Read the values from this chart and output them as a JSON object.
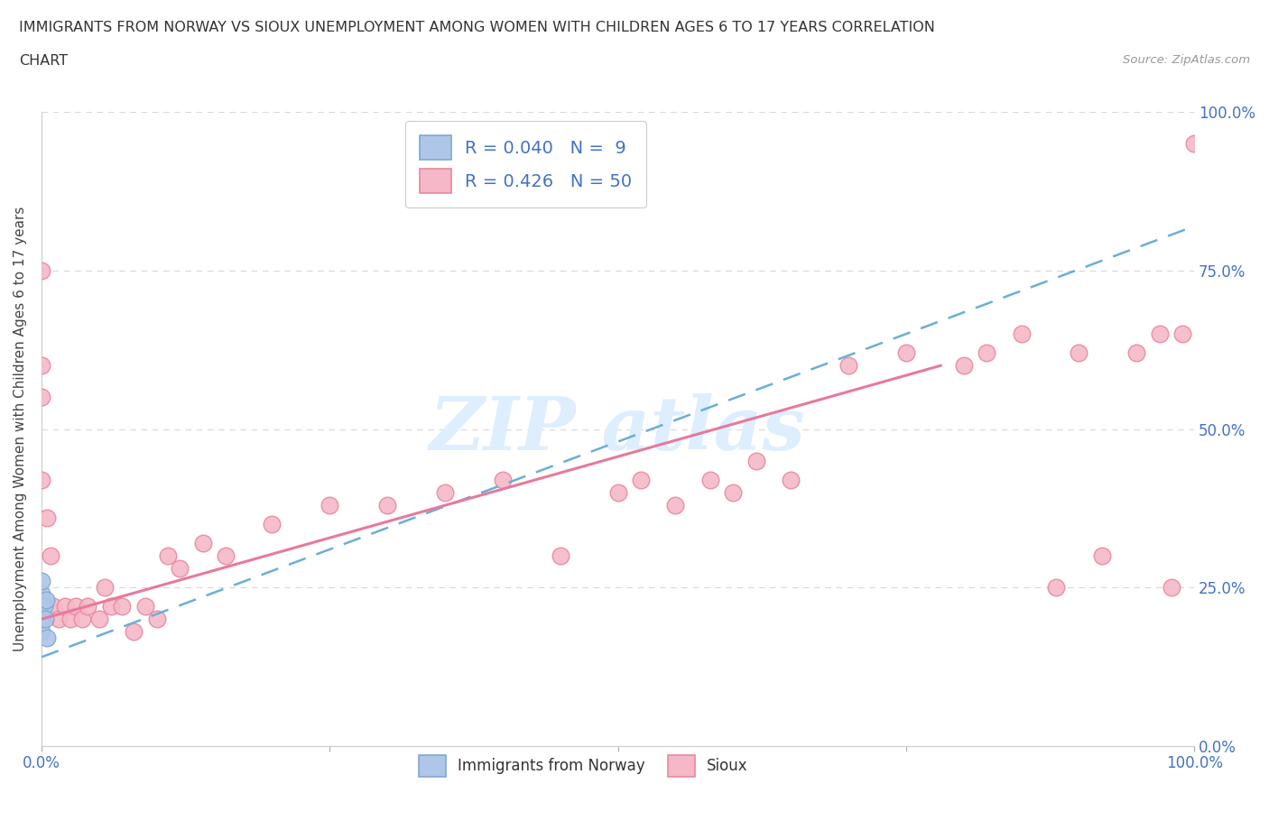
{
  "title_line1": "IMMIGRANTS FROM NORWAY VS SIOUX UNEMPLOYMENT AMONG WOMEN WITH CHILDREN AGES 6 TO 17 YEARS CORRELATION",
  "title_line2": "CHART",
  "source": "Source: ZipAtlas.com",
  "ylabel": "Unemployment Among Women with Children Ages 6 to 17 years",
  "xlim": [
    0.0,
    1.0
  ],
  "ylim": [
    0.0,
    1.0
  ],
  "xtick_labels": [
    "0.0%",
    "",
    "",
    "",
    "100.0%"
  ],
  "xtick_values": [
    0.0,
    0.25,
    0.5,
    0.75,
    1.0
  ],
  "right_ytick_labels": [
    "0.0%",
    "25.0%",
    "50.0%",
    "75.0%",
    "100.0%"
  ],
  "ytick_values": [
    0.0,
    0.25,
    0.5,
    0.75,
    1.0
  ],
  "norway_color": "#aec6e8",
  "sioux_color": "#f4b8c8",
  "norway_edge_color": "#7fa8d0",
  "sioux_edge_color": "#e8889a",
  "norway_R": 0.04,
  "norway_N": 9,
  "sioux_R": 0.426,
  "sioux_N": 50,
  "norway_x": [
    0.0,
    0.0,
    0.0,
    0.0,
    0.0,
    0.002,
    0.003,
    0.004,
    0.005
  ],
  "norway_y": [
    0.18,
    0.2,
    0.22,
    0.24,
    0.26,
    0.22,
    0.2,
    0.23,
    0.17
  ],
  "sioux_x": [
    0.0,
    0.0,
    0.0,
    0.0,
    0.005,
    0.008,
    0.01,
    0.015,
    0.02,
    0.025,
    0.03,
    0.035,
    0.04,
    0.05,
    0.055,
    0.06,
    0.07,
    0.08,
    0.09,
    0.1,
    0.11,
    0.12,
    0.14,
    0.16,
    0.2,
    0.25,
    0.3,
    0.35,
    0.4,
    0.45,
    0.5,
    0.52,
    0.55,
    0.58,
    0.6,
    0.62,
    0.65,
    0.7,
    0.75,
    0.8,
    0.82,
    0.85,
    0.88,
    0.9,
    0.92,
    0.95,
    0.97,
    0.98,
    0.99,
    1.0
  ],
  "sioux_y": [
    0.75,
    0.6,
    0.55,
    0.42,
    0.36,
    0.3,
    0.22,
    0.2,
    0.22,
    0.2,
    0.22,
    0.2,
    0.22,
    0.2,
    0.25,
    0.22,
    0.22,
    0.18,
    0.22,
    0.2,
    0.3,
    0.28,
    0.32,
    0.3,
    0.35,
    0.38,
    0.38,
    0.4,
    0.42,
    0.3,
    0.4,
    0.42,
    0.38,
    0.42,
    0.4,
    0.45,
    0.42,
    0.6,
    0.62,
    0.6,
    0.62,
    0.65,
    0.25,
    0.62,
    0.3,
    0.62,
    0.65,
    0.25,
    0.65,
    0.95
  ],
  "norway_line_color": "#6baed6",
  "sioux_line_color": "#e8799a",
  "norway_line_x0": 0.0,
  "norway_line_y0": 0.14,
  "norway_line_x1": 1.0,
  "norway_line_y1": 0.82,
  "sioux_line_x0": 0.0,
  "sioux_line_y0": 0.2,
  "sioux_line_x1": 0.78,
  "sioux_line_y1": 0.6,
  "grid_color": "#d8d8d8",
  "tick_color": "#4472c4",
  "fig_bg_color": "#ffffff",
  "watermark_color": "#ddeeff",
  "marker_size": 180
}
